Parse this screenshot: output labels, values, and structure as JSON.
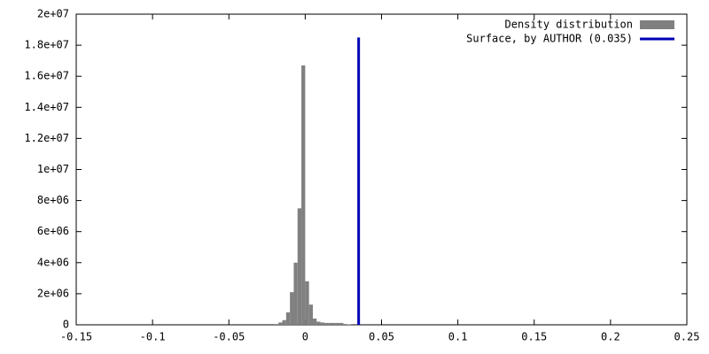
{
  "chart_data": {
    "type": "histogram",
    "bins": [
      -0.02,
      -0.0175,
      -0.015,
      -0.0125,
      -0.01,
      -0.0075,
      -0.005,
      -0.0025,
      0,
      0.0025,
      0.005,
      0.0075,
      0.01,
      0.0125,
      0.015,
      0.0175,
      0.02,
      0.0225,
      0.025,
      0.0275,
      0.03
    ],
    "series": [
      {
        "name": "Density distribution",
        "color": "#808080",
        "values": [
          50000,
          150000,
          300000,
          800000,
          2100000,
          4000000,
          7500000,
          16700000,
          2800000,
          1300000,
          400000,
          200000,
          150000,
          120000,
          120000,
          120000,
          120000,
          120000,
          50000,
          30000
        ]
      },
      {
        "name": "Surface, by AUTHOR (0.035)",
        "color": "#0000b4",
        "x": [
          0.035,
          0.035
        ],
        "values": [
          0,
          18500000
        ]
      }
    ],
    "xlim": [
      -0.15,
      0.25
    ],
    "xticks": [
      -0.15,
      -0.1,
      -0.05,
      0,
      0.05,
      0.1,
      0.15,
      0.2,
      0.25
    ],
    "ylim": [
      0,
      20000000
    ],
    "yticks": [
      0,
      {
        "value": 2000000,
        "label": "2e+06"
      },
      {
        "value": 4000000,
        "label": "4e+06"
      },
      {
        "value": 6000000,
        "label": "6e+06"
      },
      {
        "value": 8000000,
        "label": "8e+06"
      },
      {
        "value": 10000000,
        "label": "1e+07"
      },
      {
        "value": 12000000,
        "label": "1.2e+07"
      },
      {
        "value": 14000000,
        "label": "1.4e+07"
      },
      {
        "value": 16000000,
        "label": "1.6e+07"
      },
      {
        "value": 18000000,
        "label": "1.8e+07"
      },
      {
        "value": 20000000,
        "label": "2e+07"
      }
    ],
    "legend": "top-right",
    "grid": false
  }
}
